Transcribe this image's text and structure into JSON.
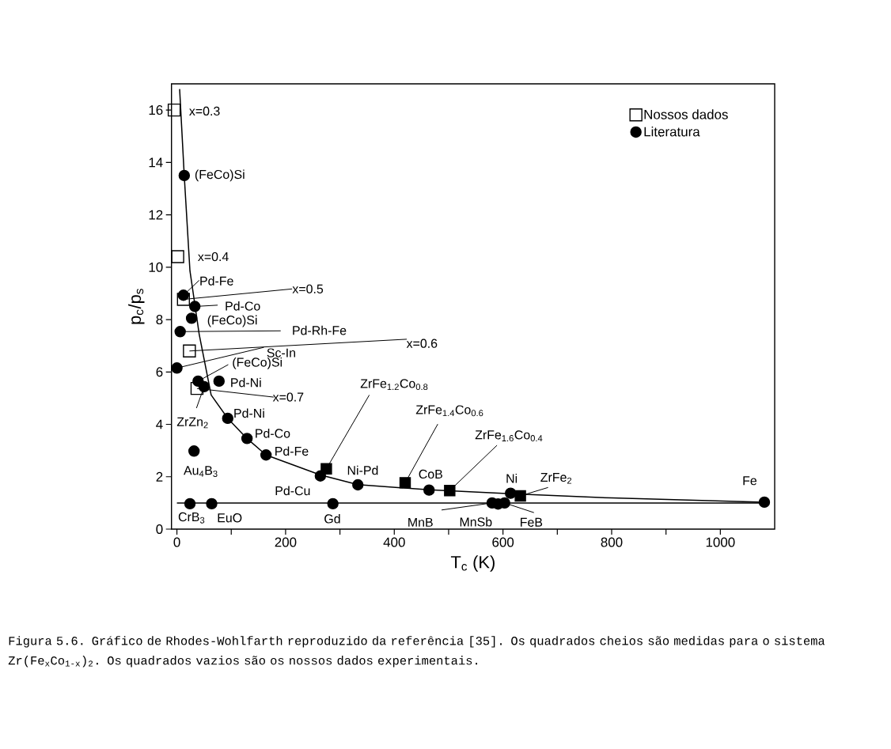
{
  "chart_data": {
    "type": "scatter",
    "xlabel": "T$_{c}$ (K)",
    "ylabel": "p$_{c}$/p$_{s}$",
    "xlim": [
      -10,
      1100
    ],
    "ylim": [
      0,
      17
    ],
    "xticks": [
      0,
      {
        "value": 100,
        "label": null
      },
      200,
      {
        "value": 300,
        "label": null
      },
      400,
      {
        "value": 500,
        "label": null
      },
      600,
      {
        "value": 700,
        "label": null
      },
      800,
      {
        "value": 900,
        "label": null
      },
      1000
    ],
    "yticks": [
      0,
      2,
      4,
      6,
      8,
      10,
      12,
      14,
      16
    ],
    "legend": "top right",
    "series": [
      {
        "name": "Nossos dados",
        "marker": "square",
        "color": "#000000",
        "x": [
          -5,
          1.5,
          12,
          23,
          37
        ],
        "values": [
          16.0,
          10.4,
          8.77,
          6.8,
          5.37
        ]
      },
      {
        "name": "Literatura",
        "marker": "circle",
        "color": "#000000",
        "x": [
          13.5,
          12,
          33,
          27,
          6,
          0,
          39,
          50,
          77.5,
          93.5,
          129,
          164,
          31.5,
          264,
          333,
          24,
          64,
          287,
          464,
          580,
          591,
          603,
          614,
          1081
        ],
        "values": [
          13.5,
          8.93,
          8.5,
          8.05,
          7.54,
          6.15,
          5.65,
          5.44,
          5.65,
          4.23,
          3.46,
          2.83,
          2.98,
          2.03,
          1.69,
          0.97,
          0.97,
          0.97,
          1.49,
          1.0,
          0.96,
          1.0,
          1.37,
          1.03
        ]
      },
      {
        "marker": "square",
        "color": "#000000",
        "x": [
          275,
          420,
          502,
          632
        ],
        "values": [
          2.3,
          1.77,
          1.47,
          1.27
        ]
      },
      {
        "type": "line",
        "marker": "none",
        "color": "#000000",
        "x": [
          5,
          13.5,
          24,
          41,
          63,
          93.5,
          129,
          164,
          264,
          333,
          464,
          614,
          800,
          1081
        ],
        "values": [
          16.8,
          13.5,
          9.86,
          7.44,
          5.12,
          4.23,
          3.46,
          2.83,
          2.07,
          1.7,
          1.5,
          1.35,
          1.19,
          1.03
        ]
      },
      {
        "type": "line",
        "marker": "none",
        "color": "#000000",
        "x": [
          0,
          1081
        ],
        "values": [
          1.0,
          1.0
        ]
      }
    ],
    "annotations": [
      {
        "text": "x=0.3",
        "x": -5,
        "y": 16.0
      },
      {
        "text": "(FeCo)Si",
        "x": 13.5,
        "y": 13.5
      },
      {
        "text": "x=0.4",
        "x": 1.5,
        "y": 10.4
      },
      {
        "text": "Pd-Fe",
        "x": 12,
        "y": 8.93
      },
      {
        "text": "x=0.5",
        "x": 12,
        "y": 8.77
      },
      {
        "text": "Pd-Co",
        "x": 33,
        "y": 8.5
      },
      {
        "text": "(FeCo)Si",
        "x": 27,
        "y": 8.05
      },
      {
        "text": "Pd-Rh-Fe",
        "x": 6,
        "y": 7.54
      },
      {
        "text": "x=0.6",
        "x": 23,
        "y": 6.8
      },
      {
        "text": "Sc-In",
        "x": 0,
        "y": 6.15
      },
      {
        "text": "(FeCo)Si",
        "x": 39,
        "y": 5.65
      },
      {
        "text": "Pd-Ni",
        "x": 77.5,
        "y": 5.65
      },
      {
        "text": "x=0.7",
        "x": 37,
        "y": 5.37
      },
      {
        "text": "ZrZn$_{2}$",
        "x": 50,
        "y": 5.44
      },
      {
        "text": "Pd-Ni",
        "x": 93.5,
        "y": 4.23
      },
      {
        "text": "Pd-Co",
        "x": 129,
        "y": 3.46
      },
      {
        "text": "Pd-Fe",
        "x": 164,
        "y": 2.83
      },
      {
        "text": "Au$_{4}$B$_{3}$",
        "x": 31.5,
        "y": 2.98
      },
      {
        "text": "Pd-Cu",
        "x": 264,
        "y": 2.03
      },
      {
        "text": "Ni-Pd",
        "x": 333,
        "y": 1.69
      },
      {
        "text": "CrB$_{3}$",
        "x": 24,
        "y": 0.97
      },
      {
        "text": "EuO",
        "x": 64,
        "y": 0.97
      },
      {
        "text": "Gd",
        "x": 287,
        "y": 0.97
      },
      {
        "text": "ZrFe$_{1.2}$Co$_{0.8}$",
        "x": 275,
        "y": 2.3
      },
      {
        "text": "ZrFe$_{1.4}$Co$_{0.6}$",
        "x": 420,
        "y": 1.77
      },
      {
        "text": "CoB",
        "x": 464,
        "y": 1.49
      },
      {
        "text": "ZrFe$_{1.6}$Co$_{0.4}$",
        "x": 502,
        "y": 1.47
      },
      {
        "text": "MnB",
        "x": 580,
        "y": 1.0
      },
      {
        "text": "MnSb",
        "x": 591,
        "y": 0.96
      },
      {
        "text": "FeB",
        "x": 603,
        "y": 1.0
      },
      {
        "text": "Ni",
        "x": 614,
        "y": 1.37
      },
      {
        "text": "ZrFe$_{2}$",
        "x": 632,
        "y": 1.27
      },
      {
        "text": "Fe",
        "x": 1081,
        "y": 1.03
      },
      "Figura 5.6. Gráfico de Rhodes-Wohlfarth reproduzido da referência [35]. Os quadrados cheios são medidas para o sistema Zr(Fe$_{x}$Co$_{1-x}$)$_{2}$. Os quadrados vazios são os nossos dados experimentais."
    ]
  }
}
